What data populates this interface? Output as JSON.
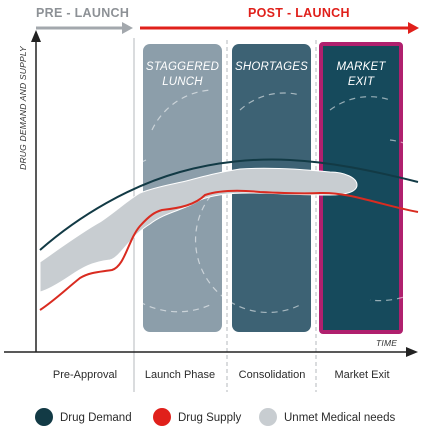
{
  "header": {
    "pre_launch": "PRE - LAUNCH",
    "post_launch": "POST - LAUNCH"
  },
  "axes": {
    "y_title": "DRUG DEMAND AND SUPPLY",
    "x_title": "TIME"
  },
  "phases": [
    {
      "label": "Pre-Approval"
    },
    {
      "label": "Launch Phase"
    },
    {
      "label": "Consolidation"
    },
    {
      "label": "Market Exit"
    }
  ],
  "boxes": [
    {
      "line1": "STAGGERED",
      "line2": "LUNCH"
    },
    {
      "line1": "SHORTAGES",
      "line2": ""
    },
    {
      "line1": "MARKET",
      "line2": "EXIT"
    }
  ],
  "legend": [
    {
      "label": "Drug Demand",
      "color": "#123a45",
      "icon": "dark-circle"
    },
    {
      "label": "Drug Supply",
      "color": "#e0201b",
      "icon": "red-circle"
    },
    {
      "label": "Unmet Medical needs",
      "color": "#c8cdd1",
      "icon": "grey-circle"
    }
  ],
  "colors": {
    "pre_launch_arrow": "#a3a8ad",
    "post_launch_arrow": "#e0201b",
    "box_staggered": "#8c9eaa",
    "box_shortages": "#3d6274",
    "box_market_exit": "#164a5c",
    "market_exit_border": "#b0206e",
    "demand": "#123a45",
    "supply": "#d92b20",
    "unmet": "#c8cdd1"
  }
}
